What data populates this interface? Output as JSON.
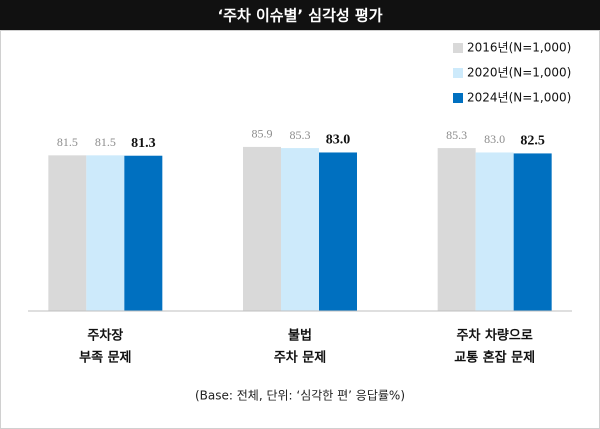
{
  "chart_data": {
    "type": "bar",
    "title": "‘주차 이슈별’ 심각성 평가",
    "categories": [
      [
        "주차장",
        "부족 문제"
      ],
      [
        "불법",
        "주차 문제"
      ],
      [
        "주차 차량으로",
        "교통 혼잡 문제"
      ]
    ],
    "series": [
      {
        "name": "2016년(N=1,000)",
        "color": "#d9d9d9",
        "values": [
          81.5,
          85.9,
          85.3
        ],
        "value_labels": [
          "81.5",
          "85.9",
          "85.3"
        ]
      },
      {
        "name": "2020년(N=1,000)",
        "color": "#cdeafb",
        "values": [
          81.5,
          85.3,
          83.0
        ],
        "value_labels": [
          "81.5",
          "85.3",
          "83.0"
        ]
      },
      {
        "name": "2024년(N=1,000)",
        "color": "#0070c0",
        "values": [
          81.3,
          83.0,
          82.5
        ],
        "value_labels": [
          "81.3",
          "83.0",
          "82.5"
        ]
      }
    ],
    "ylim": [
      0,
      100
    ],
    "note": "(Base: 전체, 단위: ‘심각한 편’ 응답률%)"
  }
}
